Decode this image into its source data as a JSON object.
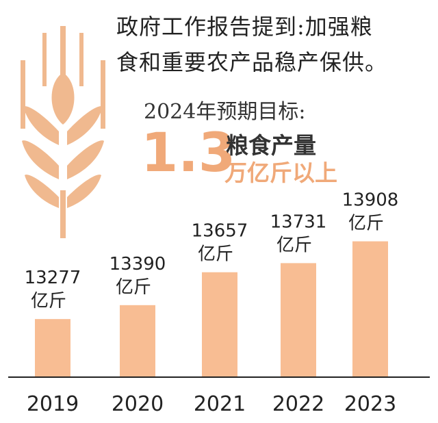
{
  "title_lines": [
    "政府工作报告提到:加强粮",
    "食和重要农产品稳产保供。"
  ],
  "target": {
    "heading": "2024年预期目标:",
    "value": "1.3",
    "label_1": "粮食产量",
    "label_2": "万亿斤以上"
  },
  "colors": {
    "accent": "#f0a979",
    "bar": "#f8bd93",
    "axis": "#222222"
  },
  "icons": [
    "wheat-icon"
  ],
  "chart_data": {
    "type": "bar",
    "categories": [
      "2019",
      "2020",
      "2021",
      "2022",
      "2023"
    ],
    "values": [
      13277,
      13390,
      13657,
      13731,
      13908
    ],
    "value_labels": [
      [
        "13277",
        "亿斤"
      ],
      [
        "13390",
        "亿斤"
      ],
      [
        "13657",
        "亿斤"
      ],
      [
        "13731",
        "亿斤"
      ],
      [
        "13908",
        "亿斤"
      ]
    ],
    "title": "",
    "xlabel": "",
    "ylabel": "",
    "grid": false
  }
}
